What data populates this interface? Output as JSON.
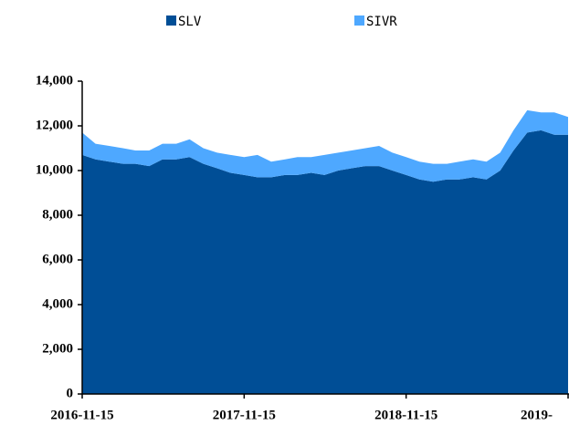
{
  "chart_data": {
    "type": "stacked_area",
    "x": [
      "2016-11-15",
      "2016-12-15",
      "2017-01-15",
      "2017-02-15",
      "2017-03-15",
      "2017-04-15",
      "2017-05-15",
      "2017-06-15",
      "2017-07-15",
      "2017-08-15",
      "2017-09-15",
      "2017-10-15",
      "2017-11-15",
      "2017-12-15",
      "2018-01-15",
      "2018-02-15",
      "2018-03-15",
      "2018-04-15",
      "2018-05-15",
      "2018-06-15",
      "2018-07-15",
      "2018-08-15",
      "2018-09-15",
      "2018-10-15",
      "2018-11-15",
      "2018-12-15",
      "2019-01-15",
      "2019-02-15",
      "2019-03-15",
      "2019-04-15",
      "2019-05-15",
      "2019-06-15",
      "2019-07-15",
      "2019-08-15",
      "2019-09-15",
      "2019-10-15",
      "2019-11-15"
    ],
    "series": [
      {
        "name": "SLV",
        "color": "#004e96",
        "values": [
          10700,
          10500,
          10400,
          10300,
          10300,
          10200,
          10500,
          10500,
          10600,
          10300,
          10100,
          9900,
          9800,
          9700,
          9700,
          9800,
          9800,
          9900,
          9800,
          10000,
          10100,
          10200,
          10200,
          10000,
          9800,
          9600,
          9500,
          9600,
          9600,
          9700,
          9600,
          10000,
          10900,
          11700,
          11800,
          11600,
          11600
        ]
      },
      {
        "name": "SIVR",
        "color": "#4ea8ff",
        "values": [
          1000,
          700,
          700,
          700,
          600,
          700,
          700,
          700,
          800,
          700,
          700,
          800,
          800,
          1000,
          700,
          700,
          800,
          700,
          900,
          800,
          800,
          800,
          900,
          800,
          800,
          800,
          800,
          700,
          800,
          800,
          800,
          800,
          900,
          1000,
          800,
          1000,
          800
        ]
      }
    ],
    "xlim": [
      "2016-11-15",
      "2019-11-15"
    ],
    "xticks": [
      "2016-11-15",
      "2017-11-15",
      "2018-11-15",
      {
        "value": "2019-11-15",
        "label": "2019-"
      }
    ],
    "ylim": [
      0,
      14000
    ],
    "yticks": [
      0,
      {
        "value": 2000,
        "label": "2,000"
      },
      {
        "value": 4000,
        "label": "4,000"
      },
      {
        "value": 6000,
        "label": "6,000"
      },
      {
        "value": 8000,
        "label": "8,000"
      },
      {
        "value": 10000,
        "label": "10,000"
      },
      {
        "value": 12000,
        "label": "12,000"
      },
      {
        "value": 14000,
        "label": "14,000"
      }
    ],
    "legend": "top"
  }
}
